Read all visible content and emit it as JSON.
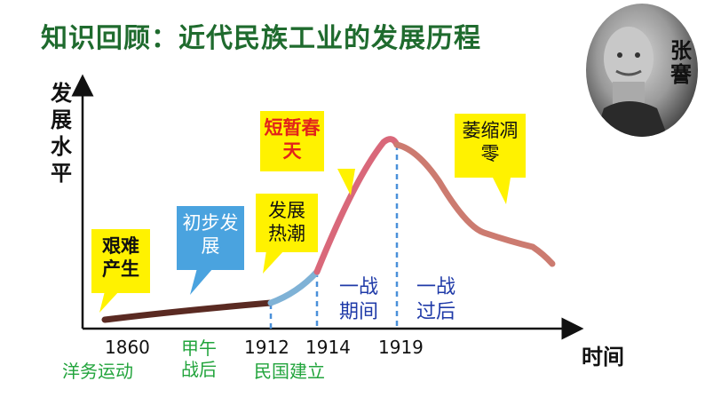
{
  "title": "知识回顾：近代民族工业的发展历程",
  "y_axis_label": "发展水平",
  "x_axis_label": "时间",
  "portrait": {
    "name": "张謇"
  },
  "years": [
    "1860",
    "1912",
    "1914",
    "1919"
  ],
  "periods": {
    "yangwu": "洋务运动",
    "jiawu": "甲午战后",
    "minguo": "民国建立",
    "war_during": "一战期间",
    "war_after": "一战过后"
  },
  "callouts": {
    "jiannan": "艰难产生",
    "chubu": "初步发展",
    "rechao": "发展热潮",
    "chuntian": "短暂春天",
    "weisuo": "萎缩凋零"
  },
  "colors": {
    "title": "#1f6b2e",
    "phase1": "#5a2a22",
    "phase2": "#7fb2d6",
    "phase3": "#d9687a",
    "phase4": "#cc7b70",
    "callout_yellow": "#fff200",
    "callout_blue": "#4aa3df",
    "period_green": "#22a43c",
    "period_blue": "#1f3aa8",
    "alert_red": "#e2231a"
  }
}
